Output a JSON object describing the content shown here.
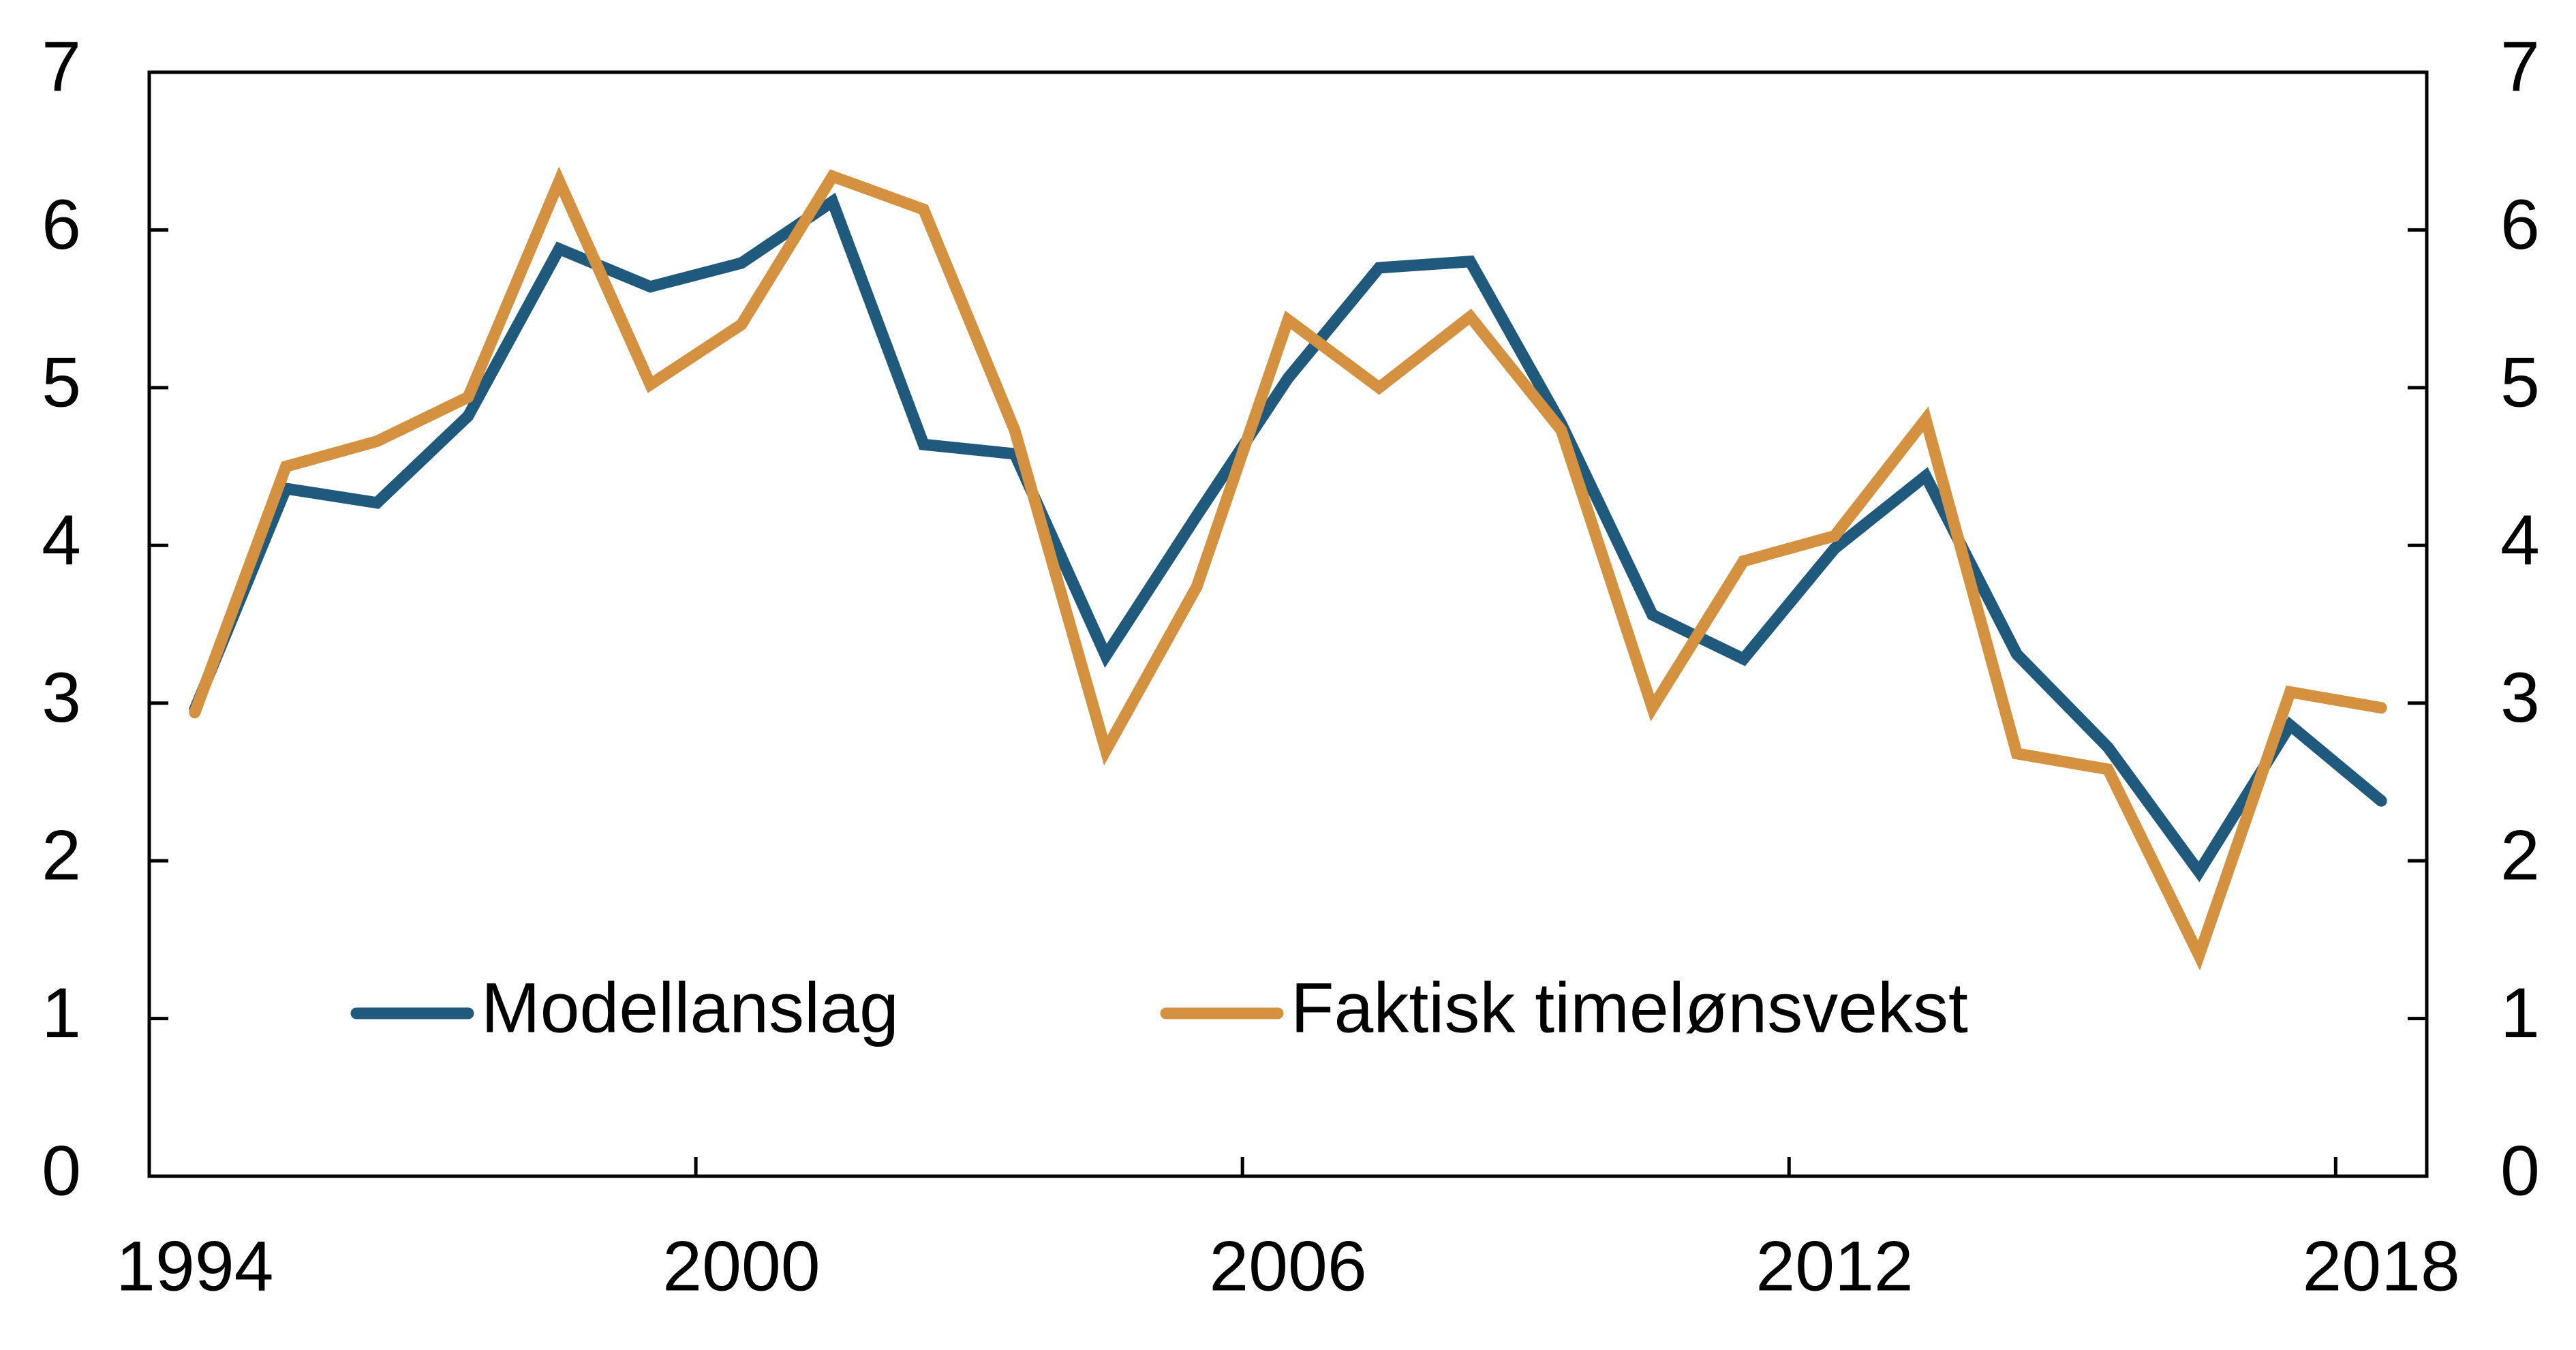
{
  "chart_data": {
    "type": "line",
    "categories": [
      "1994",
      null,
      null,
      null,
      null,
      null,
      "2000",
      null,
      null,
      null,
      null,
      null,
      "2006",
      null,
      null,
      null,
      null,
      null,
      "2012",
      null,
      null,
      null,
      null,
      null,
      "2018"
    ],
    "series": [
      {
        "name": "Modellanslag",
        "color": "#1f5a7d",
        "values": [
          2.96,
          4.36,
          4.27,
          4.82,
          5.88,
          5.64,
          5.79,
          6.18,
          4.64,
          4.58,
          3.3,
          4.19,
          5.06,
          5.76,
          5.8,
          4.77,
          3.56,
          3.28,
          3.98,
          4.44,
          3.31,
          2.72,
          1.93,
          2.86,
          2.38
        ]
      },
      {
        "name": "Faktisk timelønsvekst",
        "color": "#d4913f",
        "values": [
          2.94,
          4.5,
          4.66,
          4.94,
          6.31,
          5.02,
          5.4,
          6.34,
          6.13,
          4.73,
          2.7,
          3.74,
          5.43,
          5.0,
          5.45,
          4.73,
          2.97,
          3.9,
          4.06,
          4.8,
          2.68,
          2.58,
          1.4,
          3.07,
          2.97
        ]
      }
    ],
    "ylim": [
      0,
      7
    ],
    "yticks": [
      0,
      1,
      2,
      3,
      4,
      5,
      6,
      7
    ],
    "y2lim": [
      0,
      7
    ],
    "y2ticks": [
      0,
      1,
      2,
      3,
      4,
      5,
      6,
      7
    ],
    "grid": false
  }
}
